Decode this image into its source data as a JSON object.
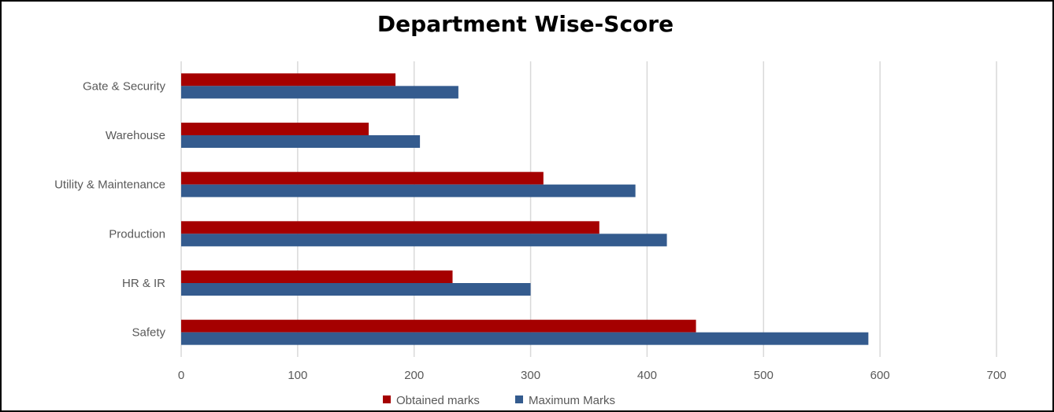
{
  "chart_data": {
    "type": "bar",
    "orientation": "horizontal",
    "title": "Department Wise-Score",
    "categories": [
      "Safety",
      "HR & IR",
      "Production",
      "Utility & Maintenance",
      "Warehouse",
      "Gate & Security"
    ],
    "series": [
      {
        "name": "Obtained marks",
        "color": "#A50000",
        "values": [
          442,
          233,
          359,
          311,
          161,
          184
        ]
      },
      {
        "name": "Maximum Marks",
        "color": "#345B8E",
        "values": [
          590,
          300,
          417,
          390,
          205,
          238
        ]
      }
    ],
    "xlim": [
      0,
      700
    ],
    "xticks": [
      0,
      100,
      200,
      300,
      400,
      500,
      600,
      700
    ],
    "grid": true,
    "legend": "bottom",
    "xlabel": "",
    "ylabel": ""
  }
}
